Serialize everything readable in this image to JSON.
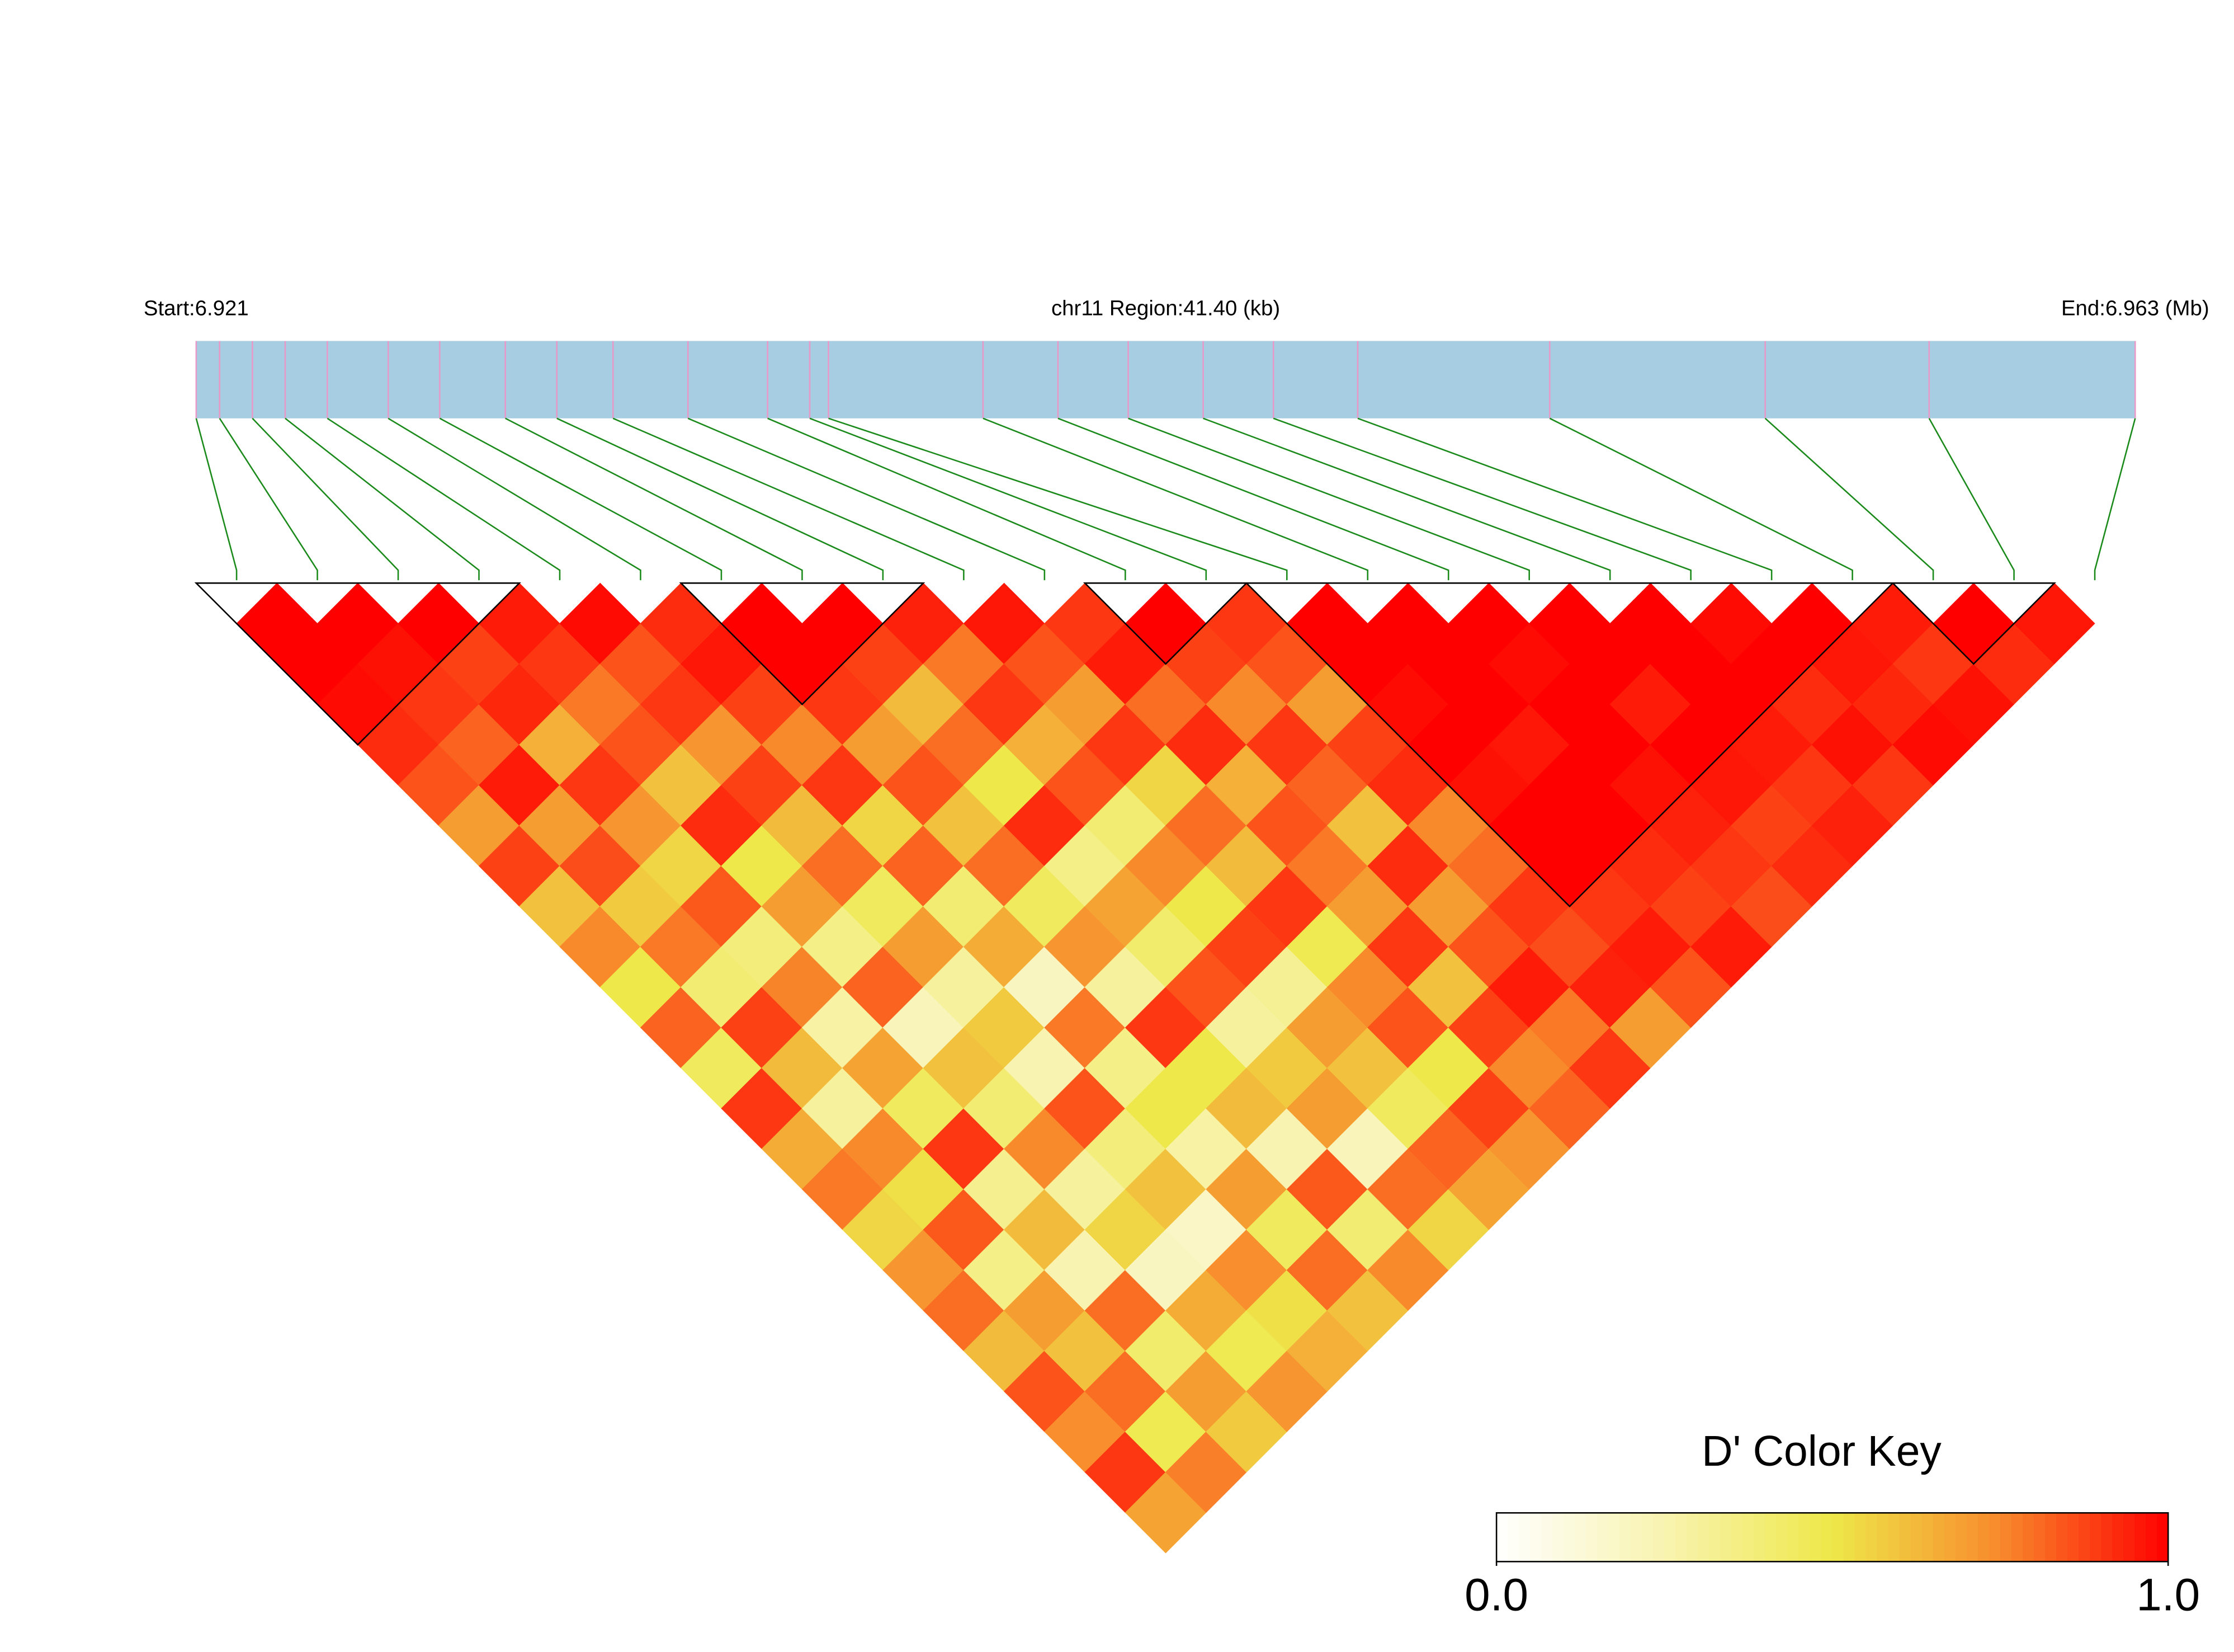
{
  "chart_data": {
    "type": "ld_heatmap",
    "start_label": "Start:6.921",
    "region_label": "chr11 Region:41.40 (kb)",
    "end_label": "End:6.963 (Mb)",
    "legend_title": "D' Color Key",
    "x": [
      6.9213,
      6.9218,
      6.9225,
      6.9232,
      6.9241,
      6.9254,
      6.9265,
      6.9279,
      6.929,
      6.9302,
      6.9318,
      6.9335,
      6.9344,
      6.9348,
      6.9381,
      6.9397,
      6.9412,
      6.9428,
      6.9443,
      6.9461,
      6.9502,
      6.9548,
      6.9583,
      6.9627
    ],
    "xlim": [
      6.9213,
      6.9627
    ],
    "values": [
      [
        1,
        1,
        0.98,
        0.92,
        0.85,
        0.7,
        0.88,
        0.6,
        0.75,
        0.5,
        0.82,
        0.45,
        0.9,
        0.66,
        0.78,
        0.55,
        0.72,
        0.8,
        0.62,
        0.85,
        0.74,
        0.9,
        0.68
      ],
      [
        1,
        0.97,
        0.9,
        0.82,
        0.95,
        0.7,
        0.86,
        0.58,
        0.78,
        0.4,
        0.88,
        0.62,
        0.3,
        0.75,
        0.52,
        0.84,
        0.35,
        0.7,
        0.6,
        0.8,
        0.48,
        0.77
      ],
      [
        1,
        0.88,
        0.93,
        0.65,
        0.9,
        0.72,
        0.55,
        0.84,
        0.38,
        0.76,
        0.28,
        0.68,
        0.45,
        0.9,
        0.33,
        0.62,
        0.25,
        0.8,
        0.42,
        0.7,
        0.58
      ],
      [
        0.95,
        0.9,
        0.78,
        0.85,
        0.6,
        0.92,
        0.5,
        0.7,
        0.35,
        0.82,
        0.22,
        0.6,
        0.4,
        0.75,
        0.3,
        0.55,
        0.2,
        0.66,
        0.48,
        0.72
      ],
      [
        0.98,
        0.85,
        0.9,
        0.72,
        0.88,
        0.62,
        0.8,
        0.45,
        0.7,
        0.3,
        0.58,
        0.25,
        0.85,
        0.38,
        0.6,
        0.18,
        0.74,
        0.52,
        0.65
      ],
      [
        0.92,
        0.96,
        0.88,
        0.75,
        0.9,
        0.55,
        0.82,
        0.4,
        0.66,
        0.2,
        0.78,
        0.35,
        0.5,
        0.28,
        0.7,
        0.45,
        0.8,
        0.6
      ],
      [
        1,
        1,
        0.9,
        0.7,
        0.85,
        0.6,
        0.8,
        0.45,
        0.72,
        0.3,
        0.9,
        0.5,
        0.62,
        0.25,
        0.84,
        0.4,
        0.75
      ],
      [
        1,
        0.88,
        0.62,
        0.8,
        0.5,
        0.92,
        0.35,
        0.68,
        0.42,
        0.85,
        0.3,
        0.58,
        0.7,
        0.22,
        0.8,
        0.55
      ],
      [
        0.94,
        0.78,
        0.9,
        0.65,
        0.85,
        0.4,
        0.75,
        0.5,
        0.88,
        0.32,
        0.7,
        0.6,
        0.45,
        0.82,
        0.68
      ],
      [
        0.96,
        0.85,
        0.7,
        0.9,
        0.55,
        0.8,
        0.62,
        0.9,
        0.48,
        0.75,
        0.85,
        0.5,
        0.88,
        0.72
      ],
      [
        0.9,
        0.95,
        0.8,
        0.92,
        0.65,
        0.85,
        0.78,
        0.7,
        0.9,
        0.6,
        0.88,
        0.75,
        0.82
      ],
      [
        1,
        0.88,
        0.75,
        0.9,
        0.82,
        0.6,
        0.92,
        0.7,
        0.85,
        0.95,
        0.78,
        0.9
      ],
      [
        0.9,
        0.85,
        0.7,
        0.88,
        0.92,
        0.75,
        0.8,
        0.9,
        0.86,
        0.94,
        0.7
      ],
      [
        1,
        1,
        0.98,
        1,
        0.97,
        1,
        1,
        0.9,
        0.95,
        0.85
      ],
      [
        1,
        1,
        1,
        0.96,
        1,
        1,
        0.92,
        0.88,
        0.95
      ],
      [
        1,
        0.98,
        1,
        1,
        0.97,
        0.94,
        0.9,
        0.86
      ],
      [
        1,
        1,
        0.95,
        1,
        0.96,
        0.88,
        0.92
      ],
      [
        1,
        1,
        1,
        0.95,
        0.9,
        0.94
      ],
      [
        0.98,
        1,
        0.92,
        0.97,
        0.9
      ],
      [
        1,
        0.96,
        0.93,
        0.98
      ],
      [
        0.95,
        0.9,
        0.97
      ],
      [
        1,
        0.92
      ],
      [
        0.96
      ]
    ],
    "blocks": [
      [
        0,
        3
      ],
      [
        6,
        8
      ],
      [
        11,
        12
      ],
      [
        13,
        20
      ],
      [
        21,
        22
      ]
    ],
    "zlim": [
      0,
      1
    ],
    "zticks": [
      {
        "value": 0,
        "label": "0.0"
      },
      {
        "value": 1,
        "label": "1.0"
      }
    ],
    "colors": [
      "#ffffff",
      "#f8f3b0",
      "#eee84a",
      "#f88a2c",
      "#ff0000"
    ],
    "bar_color": "#a6cde2",
    "snp_color": "#e899c8",
    "link_color": "#1a8a1a"
  }
}
